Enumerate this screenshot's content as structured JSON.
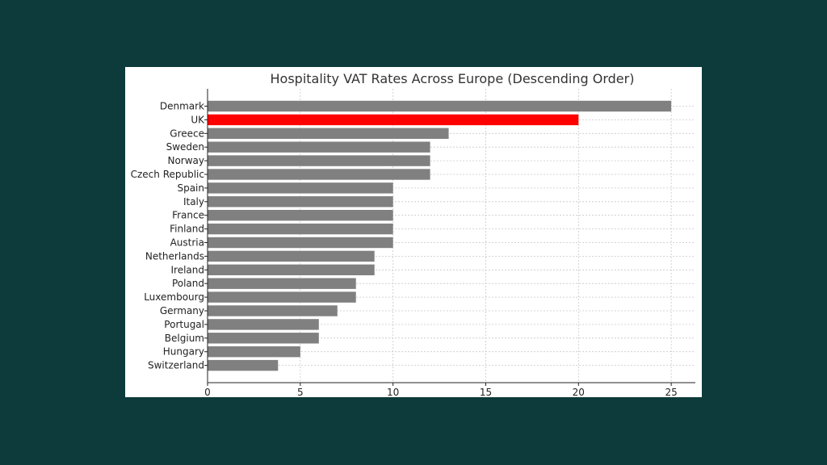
{
  "chart_data": {
    "type": "bar",
    "orientation": "horizontal",
    "title": "Hospitality VAT Rates Across Europe (Descending Order)",
    "xlabel": "",
    "ylabel": "",
    "categories": [
      "Denmark",
      "UK",
      "Greece",
      "Sweden",
      "Norway",
      "Czech Republic",
      "Spain",
      "Italy",
      "France",
      "Finland",
      "Austria",
      "Netherlands",
      "Ireland",
      "Poland",
      "Luxembourg",
      "Germany",
      "Portugal",
      "Belgium",
      "Hungary",
      "Switzerland"
    ],
    "values": [
      25,
      20,
      13,
      12,
      12,
      12,
      10,
      10,
      10,
      10,
      10,
      9,
      9,
      8,
      8,
      7,
      6,
      6,
      5,
      3.8
    ],
    "xlim": [
      0,
      26.3
    ],
    "xticks": [
      0,
      5,
      10,
      15,
      20,
      25
    ],
    "grid": true,
    "colors": {
      "default": "#808080",
      "highlight": "#ff0000"
    },
    "highlight": "UK"
  }
}
